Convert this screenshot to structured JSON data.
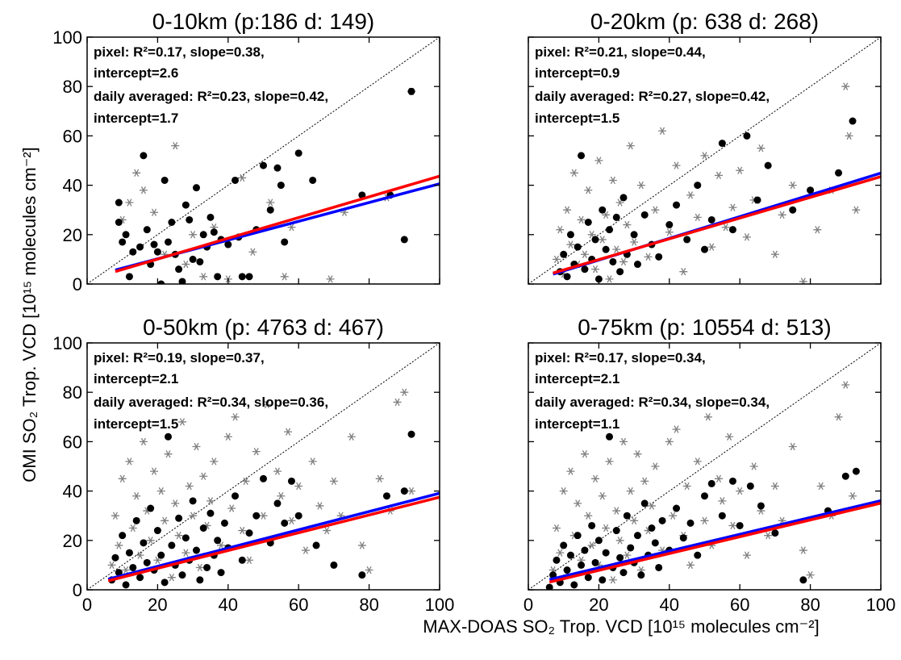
{
  "xlabel": "MAX-DOAS SO₂ Trop. VCD [10¹⁵ molecules cm⁻²]",
  "ylabel": "OMI SO₂ Trop. VCD [10¹⁵ molecules cm⁻²]",
  "chart_data": [
    {
      "type": "scatter",
      "title": "0-10km (p:186  d: 149)",
      "annotations": [
        "pixel: R²=0.17, slope=0.38,",
        "intercept=2.6",
        "daily averaged: R²=0.23, slope=0.42,",
        "intercept=1.7"
      ],
      "xlim": [
        0,
        100
      ],
      "ylim": [
        0,
        100
      ],
      "xticks": [
        0,
        20,
        40,
        60,
        80,
        100
      ],
      "yticks": [
        0,
        20,
        40,
        60,
        80,
        100
      ],
      "show_xtick_labels": false,
      "show_ytick_labels": true,
      "series": [
        {
          "color": "#808080",
          "marker": "asterisk",
          "x": [
            10,
            12,
            14,
            16,
            19,
            22,
            25,
            28,
            30,
            33,
            36,
            40,
            44,
            47,
            52,
            56,
            58,
            69,
            73,
            85,
            92
          ],
          "values": [
            26,
            33,
            45,
            38,
            29,
            12,
            56,
            8,
            20,
            3,
            23,
            2,
            43,
            13,
            33,
            3,
            23,
            2,
            29,
            35,
            78
          ]
        },
        {
          "color": "#000000",
          "marker": "circle",
          "x": [
            9,
            9,
            10,
            11,
            12,
            13,
            15,
            16,
            17,
            18,
            19,
            20,
            21,
            22,
            23,
            24,
            25,
            26,
            27,
            28,
            29,
            30,
            31,
            32,
            33,
            34,
            35,
            36,
            37,
            38,
            40,
            42,
            43,
            44,
            46,
            48,
            50,
            52,
            54,
            55,
            56,
            60,
            64,
            78,
            86,
            90,
            92
          ],
          "values": [
            33,
            25,
            17,
            20,
            3,
            13,
            15,
            52,
            22,
            8,
            16,
            13,
            0,
            42,
            17,
            25,
            12,
            6,
            1,
            32,
            26,
            10,
            39,
            9,
            20,
            15,
            27,
            21,
            3,
            18,
            16,
            42,
            19,
            3,
            3,
            22,
            48,
            30,
            47,
            40,
            17,
            53,
            42,
            36,
            36,
            18,
            78
          ]
        }
      ],
      "fits": [
        {
          "color": "#0000ff",
          "slope": 0.38,
          "intercept": 2.6,
          "x": [
            8,
            100
          ]
        },
        {
          "color": "#ff0000",
          "slope": 0.42,
          "intercept": 1.7,
          "x": [
            8,
            100
          ]
        }
      ]
    },
    {
      "type": "scatter",
      "title": "0-20km (p: 638  d: 268)",
      "annotations": [
        "pixel: R²=0.21, slope=0.44,",
        "intercept=0.9",
        "daily averaged: R²=0.27, slope=0.42,",
        "intercept=1.5"
      ],
      "xlim": [
        0,
        100
      ],
      "ylim": [
        0,
        100
      ],
      "xticks": [
        0,
        20,
        40,
        60,
        80,
        100
      ],
      "yticks": [
        0,
        20,
        40,
        60,
        80,
        100
      ],
      "show_xtick_labels": false,
      "show_ytick_labels": false,
      "series": [
        {
          "color": "#808080",
          "marker": "asterisk",
          "x": [
            8,
            9,
            10,
            11,
            12,
            13,
            14,
            15,
            16,
            17,
            18,
            19,
            20,
            21,
            22,
            23,
            24,
            25,
            26,
            27,
            28,
            29,
            30,
            32,
            34,
            36,
            38,
            40,
            42,
            44,
            46,
            48,
            50,
            52,
            54,
            56,
            58,
            60,
            62,
            64,
            66,
            70,
            72,
            75,
            78,
            82,
            86,
            90,
            91,
            93
          ],
          "values": [
            10,
            22,
            4,
            30,
            16,
            45,
            8,
            26,
            12,
            38,
            20,
            6,
            50,
            18,
            28,
            2,
            42,
            14,
            33,
            9,
            24,
            56,
            17,
            40,
            11,
            30,
            62,
            21,
            48,
            5,
            36,
            27,
            52,
            15,
            44,
            23,
            31,
            46,
            19,
            34,
            55,
            12,
            28,
            40,
            1,
            22,
            38,
            80,
            60,
            30
          ]
        },
        {
          "color": "#000000",
          "marker": "circle",
          "x": [
            9,
            10,
            11,
            12,
            13,
            14,
            15,
            16,
            17,
            18,
            19,
            20,
            21,
            22,
            23,
            24,
            25,
            26,
            27,
            28,
            30,
            31,
            33,
            35,
            37,
            40,
            42,
            45,
            48,
            50,
            52,
            55,
            58,
            62,
            65,
            68,
            75,
            80,
            88,
            92
          ],
          "values": [
            5,
            12,
            3,
            20,
            8,
            15,
            52,
            6,
            25,
            10,
            18,
            2,
            30,
            14,
            22,
            9,
            27,
            5,
            35,
            12,
            20,
            8,
            28,
            16,
            11,
            24,
            32,
            18,
            40,
            14,
            26,
            57,
            22,
            60,
            34,
            48,
            30,
            38,
            45,
            66
          ]
        }
      ],
      "fits": [
        {
          "color": "#0000ff",
          "slope": 0.44,
          "intercept": 0.9,
          "x": [
            7,
            100
          ]
        },
        {
          "color": "#ff0000",
          "slope": 0.42,
          "intercept": 1.5,
          "x": [
            7,
            100
          ]
        }
      ]
    },
    {
      "type": "scatter",
      "title": "0-50km (p: 4763  d: 467)",
      "annotations": [
        "pixel: R²=0.19, slope=0.37,",
        "intercept=2.1",
        "daily averaged: R²=0.34, slope=0.36,",
        "intercept=1.5"
      ],
      "xlim": [
        0,
        100
      ],
      "ylim": [
        0,
        100
      ],
      "xticks": [
        0,
        20,
        40,
        60,
        80,
        100
      ],
      "yticks": [
        0,
        20,
        40,
        60,
        80,
        100
      ],
      "show_xtick_labels": true,
      "show_ytick_labels": true,
      "series": [
        {
          "color": "#808080",
          "marker": "asterisk",
          "x": [
            7,
            8,
            9,
            10,
            11,
            12,
            13,
            14,
            15,
            16,
            17,
            18,
            19,
            20,
            21,
            22,
            23,
            24,
            25,
            26,
            27,
            28,
            29,
            30,
            31,
            32,
            33,
            34,
            35,
            36,
            38,
            40,
            41,
            42,
            44,
            45,
            46,
            48,
            50,
            51,
            52,
            54,
            55,
            57,
            58,
            60,
            62,
            64,
            66,
            68,
            70,
            72,
            75,
            78,
            80,
            83,
            86,
            88,
            90,
            92
          ],
          "values": [
            10,
            30,
            18,
            45,
            8,
            52,
            25,
            38,
            14,
            60,
            32,
            20,
            48,
            12,
            40,
            28,
            55,
            5,
            35,
            22,
            68,
            15,
            42,
            30,
            58,
            9,
            46,
            26,
            36,
            52,
            18,
            62,
            33,
            70,
            24,
            44,
            12,
            56,
            30,
            75,
            20,
            48,
            38,
            64,
            28,
            42,
            16,
            52,
            34,
            24,
            44,
            30,
            62,
            18,
            8,
            45,
            32,
            76,
            80,
            40
          ]
        },
        {
          "color": "#000000",
          "marker": "circle",
          "x": [
            7,
            8,
            9,
            10,
            11,
            12,
            13,
            14,
            15,
            16,
            17,
            18,
            19,
            20,
            21,
            22,
            23,
            24,
            25,
            26,
            27,
            28,
            29,
            30,
            31,
            32,
            33,
            34,
            35,
            36,
            37,
            38,
            39,
            40,
            42,
            44,
            46,
            48,
            50,
            52,
            54,
            56,
            58,
            60,
            65,
            70,
            78,
            85,
            90,
            92
          ],
          "values": [
            4,
            13,
            7,
            22,
            2,
            15,
            9,
            28,
            5,
            19,
            11,
            33,
            8,
            24,
            14,
            3,
            62,
            18,
            10,
            29,
            6,
            21,
            12,
            36,
            16,
            4,
            25,
            9,
            31,
            14,
            20,
            7,
            27,
            17,
            38,
            12,
            23,
            30,
            45,
            19,
            35,
            27,
            44,
            30,
            18,
            10,
            6,
            38,
            40,
            63
          ]
        }
      ],
      "fits": [
        {
          "color": "#0000ff",
          "slope": 0.37,
          "intercept": 2.1,
          "x": [
            6,
            100
          ]
        },
        {
          "color": "#ff0000",
          "slope": 0.36,
          "intercept": 1.5,
          "x": [
            6,
            100
          ]
        }
      ]
    },
    {
      "type": "scatter",
      "title": "0-75km (p: 10554  d: 513)",
      "annotations": [
        "pixel: R²=0.17, slope=0.34,",
        "intercept=2.1",
        "daily averaged: R²=0.34, slope=0.34,",
        "intercept=1.1"
      ],
      "xlim": [
        0,
        100
      ],
      "ylim": [
        0,
        100
      ],
      "xticks": [
        0,
        20,
        40,
        60,
        80,
        100
      ],
      "yticks": [
        0,
        20,
        40,
        60,
        80,
        100
      ],
      "show_xtick_labels": true,
      "show_ytick_labels": false,
      "series": [
        {
          "color": "#808080",
          "marker": "asterisk",
          "x": [
            7,
            8,
            9,
            10,
            11,
            12,
            13,
            14,
            15,
            16,
            17,
            18,
            19,
            20,
            21,
            22,
            23,
            24,
            25,
            26,
            27,
            28,
            29,
            30,
            31,
            32,
            33,
            34,
            35,
            36,
            38,
            40,
            41,
            42,
            44,
            45,
            46,
            48,
            50,
            51,
            52,
            54,
            55,
            57,
            58,
            60,
            62,
            64,
            66,
            68,
            70,
            72,
            75,
            78,
            80,
            83,
            86,
            88,
            90,
            92
          ],
          "values": [
            8,
            25,
            15,
            40,
            6,
            48,
            22,
            35,
            12,
            55,
            30,
            18,
            45,
            10,
            38,
            25,
            52,
            4,
            32,
            20,
            60,
            14,
            40,
            28,
            55,
            8,
            44,
            24,
            34,
            50,
            16,
            60,
            30,
            65,
            22,
            42,
            10,
            52,
            28,
            70,
            18,
            45,
            36,
            62,
            26,
            40,
            14,
            50,
            32,
            22,
            42,
            28,
            58,
            16,
            6,
            42,
            30,
            70,
            83,
            38
          ]
        },
        {
          "color": "#000000",
          "marker": "circle",
          "x": [
            6,
            7,
            8,
            9,
            10,
            11,
            12,
            13,
            14,
            15,
            16,
            17,
            18,
            19,
            20,
            21,
            22,
            23,
            24,
            25,
            26,
            27,
            28,
            29,
            30,
            31,
            32,
            33,
            34,
            35,
            36,
            37,
            38,
            40,
            42,
            44,
            46,
            48,
            50,
            52,
            55,
            58,
            60,
            63,
            66,
            70,
            78,
            85,
            90,
            93
          ],
          "values": [
            1,
            6,
            12,
            3,
            18,
            8,
            14,
            2,
            22,
            10,
            16,
            5,
            26,
            11,
            20,
            4,
            15,
            62,
            9,
            24,
            13,
            7,
            30,
            17,
            11,
            22,
            6,
            35,
            14,
            25,
            19,
            9,
            28,
            16,
            33,
            21,
            27,
            14,
            38,
            43,
            30,
            44,
            26,
            42,
            34,
            23,
            4,
            32,
            46,
            48
          ]
        }
      ],
      "fits": [
        {
          "color": "#0000ff",
          "slope": 0.34,
          "intercept": 2.1,
          "x": [
            6,
            100
          ]
        },
        {
          "color": "#ff0000",
          "slope": 0.34,
          "intercept": 1.1,
          "x": [
            6,
            100
          ]
        }
      ]
    }
  ]
}
